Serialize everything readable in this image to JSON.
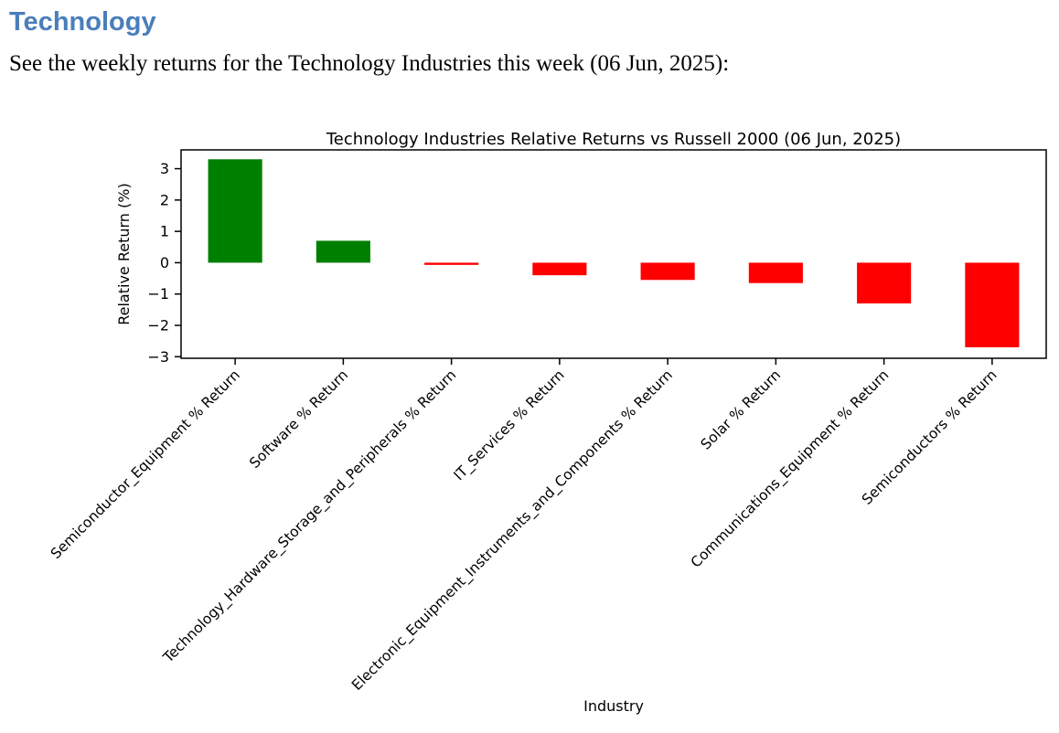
{
  "document": {
    "heading": "Technology",
    "subtitle": "See the weekly returns for the Technology Industries this week (06 Jun, 2025):"
  },
  "colors": {
    "heading_blue": "#4a7ebb",
    "positive_green": "#008000",
    "negative_red": "#ff0000",
    "axis_black": "#000000",
    "background": "#ffffff"
  },
  "chart_data": {
    "type": "bar",
    "title": "Technology Industries Relative Returns vs Russell 2000 (06 Jun, 2025)",
    "xlabel": "Industry",
    "ylabel": "Relative Return (%)",
    "categories": [
      "Semiconductor_Equipment % Return",
      "Software % Return",
      "Technology_Hardware_Storage_and_Peripherals % Return",
      "IT_Services % Return",
      "Electronic_Equipment_Instruments_and_Components % Return",
      "Solar % Return",
      "Communications_Equipment % Return",
      "Semiconductors % Return"
    ],
    "values": [
      3.3,
      0.7,
      -0.07,
      -0.4,
      -0.55,
      -0.65,
      -1.3,
      -2.7
    ],
    "positive_color": "#008000",
    "negative_color": "#ff0000",
    "ylim": [
      -3.05,
      3.6
    ],
    "yticks": [
      -3,
      -2,
      -1,
      0,
      1,
      2,
      3
    ],
    "x_tick_rotation_deg": 45,
    "bar_width_fraction": 0.5,
    "grid": false,
    "legend": false
  }
}
